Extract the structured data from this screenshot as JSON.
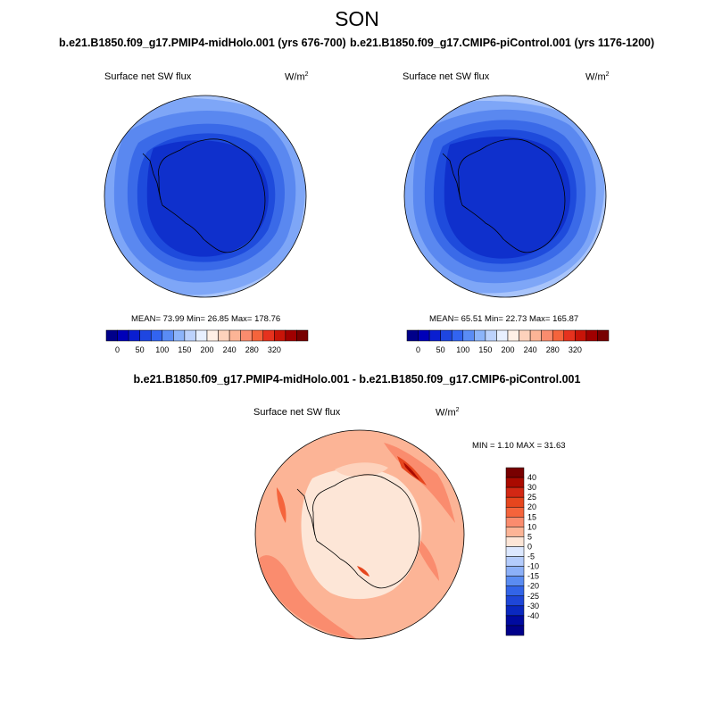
{
  "figure": {
    "title": "SON"
  },
  "panels": [
    {
      "case_title": "b.e21.B1850.f09_g17.PMIP4-midHolo.001 (yrs 676-700)",
      "variable": "Surface net SW flux",
      "units": "W/m",
      "units_exp": "2",
      "stats": "MEAN=  73.99  Min=  26.85  Max= 178.76"
    },
    {
      "case_title": "b.e21.B1850.f09_g17.CMIP6-piControl.001 (yrs 1176-1200)",
      "variable": "Surface net SW flux",
      "units": "W/m",
      "units_exp": "2",
      "stats": "MEAN=  65.51  Min=  22.73  Max= 165.87"
    },
    {
      "case_title": "b.e21.B1850.f09_g17.PMIP4-midHolo.001 - b.e21.B1850.f09_g17.CMIP6-piControl.001",
      "variable": "Surface net SW flux",
      "units": "W/m",
      "units_exp": "2",
      "stats": "MIN =   1.10 MAX =  31.63"
    }
  ],
  "colorbar_abs": {
    "colors": [
      "#00008a",
      "#0000b8",
      "#0a1ed0",
      "#1e46e0",
      "#3264f0",
      "#5a8cf5",
      "#8cb4fa",
      "#bcd2fc",
      "#e8f0ff",
      "#fff0e6",
      "#fdd2bc",
      "#fcb496",
      "#fa8c6e",
      "#f5643c",
      "#e6321e",
      "#c81408",
      "#a00000",
      "#780000"
    ],
    "labels": [
      "0",
      "50",
      "100",
      "150",
      "200",
      "240",
      "280",
      "320"
    ]
  },
  "colorbar_diff": {
    "colors": [
      "#780000",
      "#aa0a00",
      "#d22814",
      "#e6461e",
      "#f5643c",
      "#fa8c6e",
      "#fcb496",
      "#fde6d7",
      "#dce8ff",
      "#b4ccfc",
      "#8cb0f8",
      "#5a8cf2",
      "#3264e8",
      "#1e46d8",
      "#0a28c0",
      "#000aa0",
      "#00008a"
    ],
    "labels": [
      "40",
      "30",
      "25",
      "20",
      "15",
      "10",
      "5",
      "0",
      "-5",
      "-10",
      "-15",
      "-20",
      "-25",
      "-30",
      "-40"
    ]
  }
}
